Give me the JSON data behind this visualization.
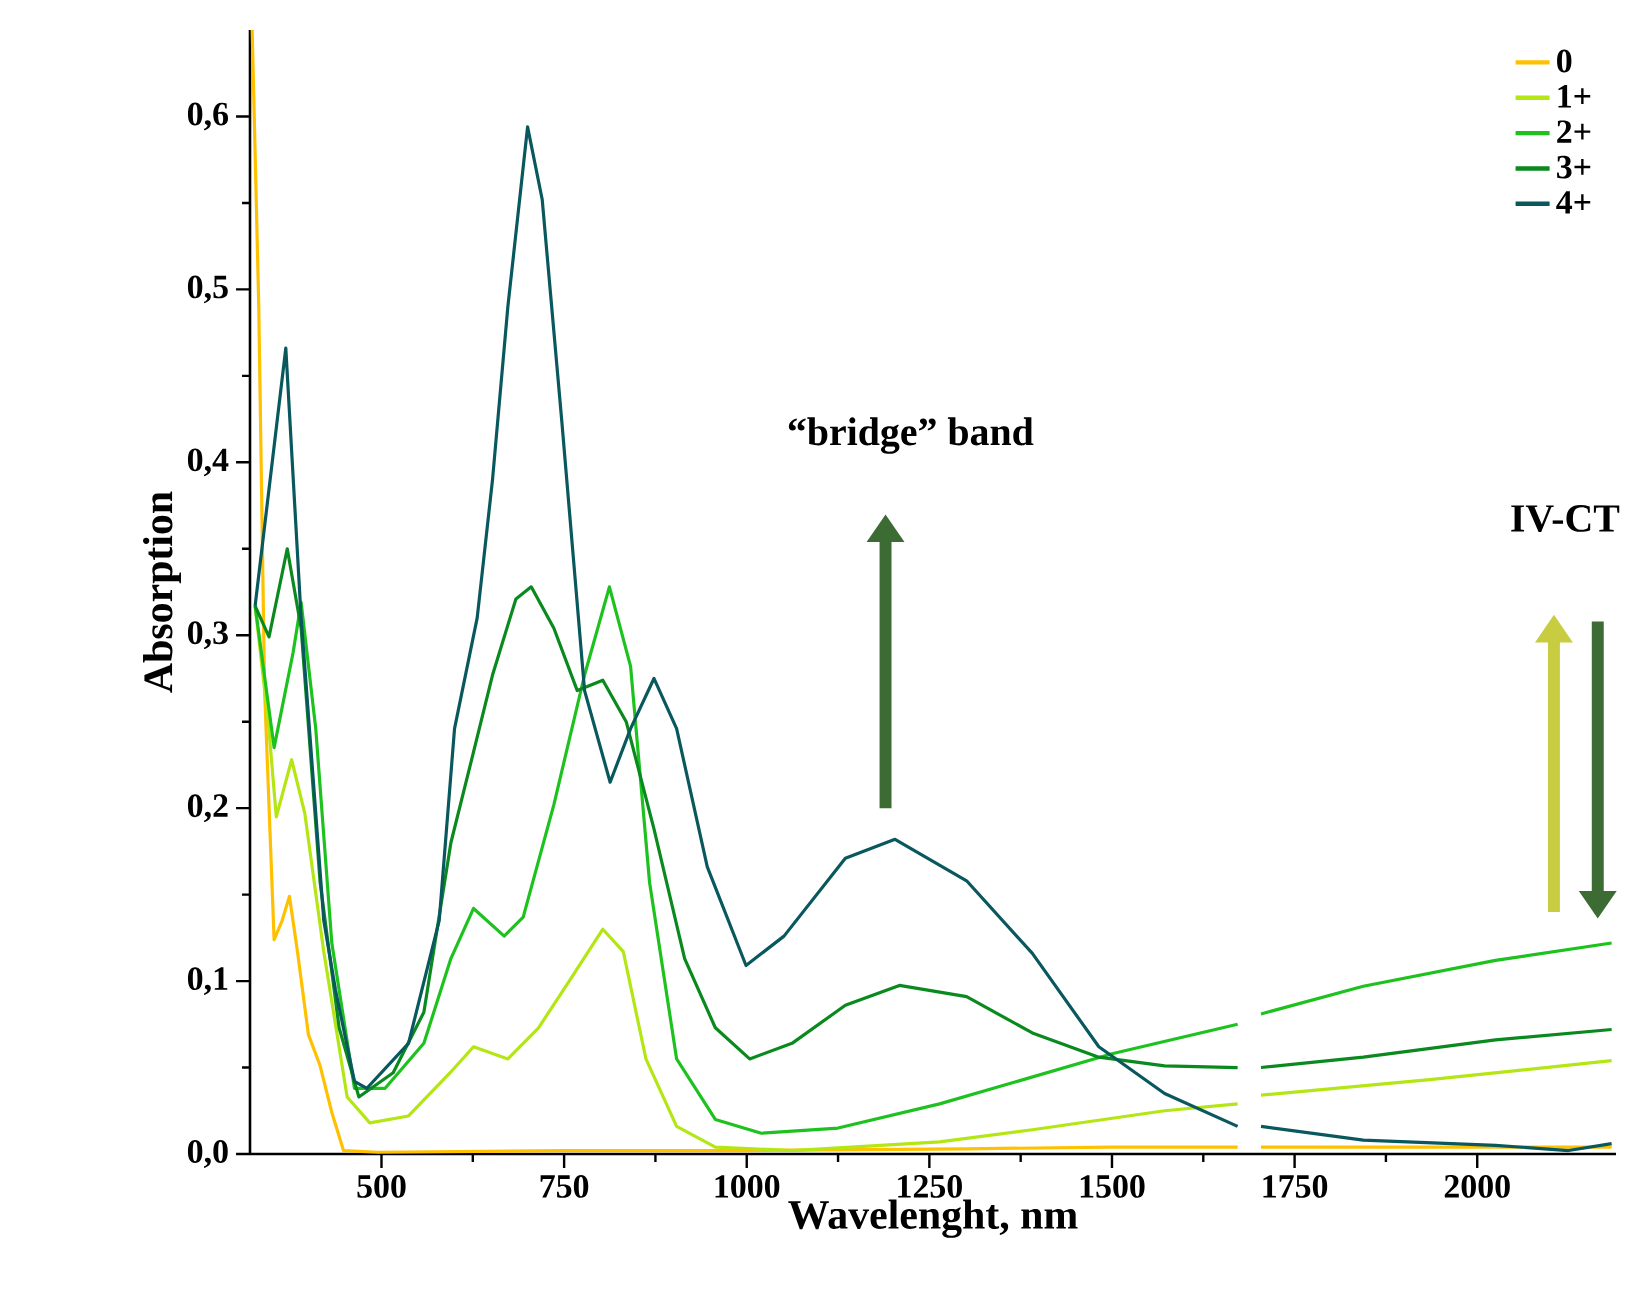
{
  "chart_data": {
    "type": "line",
    "xlabel": "Wavelenght, nm",
    "ylabel": "Absorption",
    "xlim": [
      320,
      2190
    ],
    "ylim": [
      0,
      0.65
    ],
    "xticks": [
      500,
      750,
      1000,
      1250,
      1500,
      1750,
      2000
    ],
    "yticks": [
      {
        "value": 0,
        "label": "0,0"
      },
      {
        "value": 0.1,
        "label": "0,1"
      },
      {
        "value": 0.2,
        "label": "0,2"
      },
      {
        "value": 0.3,
        "label": "0,3"
      },
      {
        "value": 0.4,
        "label": "0,4"
      },
      {
        "value": 0.5,
        "label": "0,5"
      },
      {
        "value": 0.6,
        "label": "0,6"
      }
    ],
    "legend": "top right",
    "marker": "none",
    "line_style": "solid",
    "annotations": [
      "“bridge” band",
      "IV-CT"
    ],
    "series": [
      {
        "name": "0",
        "color": "#ffc000",
        "x": [
          323,
          332,
          340,
          353,
          364,
          374,
          385,
          400,
          416,
          432,
          448,
          495,
          750,
          1000,
          1300,
          1500,
          1672,
          1688,
          1704,
          1750,
          2000,
          2184
        ],
        "values": [
          0.65,
          0.49,
          0.268,
          0.124,
          0.135,
          0.149,
          0.117,
          0.069,
          0.051,
          0.024,
          0.002,
          0.001,
          0.002,
          0.002,
          0.003,
          0.004,
          0.004,
          null,
          0.004,
          0.004,
          0.004,
          0.004
        ]
      },
      {
        "name": "1+",
        "color": "#b4e614",
        "x": [
          327,
          345,
          356,
          377,
          395,
          421,
          453,
          484,
          537,
          594,
          626,
          673,
          715,
          757,
          803,
          831,
          862,
          904,
          957,
          1062,
          1264,
          1391,
          1572,
          1672,
          1688,
          1704,
          1935,
          2184
        ],
        "values": [
          0.317,
          0.25,
          0.195,
          0.228,
          0.197,
          0.117,
          0.033,
          0.018,
          0.022,
          0.047,
          0.062,
          0.055,
          0.073,
          0.1,
          0.13,
          0.117,
          0.055,
          0.016,
          0.004,
          0.002,
          0.007,
          0.014,
          0.025,
          0.029,
          null,
          0.034,
          0.043,
          0.054
        ]
      },
      {
        "name": "2+",
        "color": "#1ec21e",
        "x": [
          327,
          353,
          379,
          390,
          410,
          432,
          463,
          505,
          558,
          595,
          626,
          668,
          694,
          736,
          778,
          812,
          841,
          867,
          904,
          957,
          1020,
          1125,
          1264,
          1346,
          1500,
          1672,
          1688,
          1704,
          1844,
          2025,
          2184
        ],
        "values": [
          0.317,
          0.235,
          0.29,
          0.319,
          0.246,
          0.122,
          0.038,
          0.038,
          0.064,
          0.113,
          0.142,
          0.126,
          0.137,
          0.202,
          0.277,
          0.328,
          0.282,
          0.157,
          0.055,
          0.02,
          0.012,
          0.015,
          0.029,
          0.039,
          0.058,
          0.075,
          null,
          0.081,
          0.097,
          0.112,
          0.122
        ]
      },
      {
        "name": "3+",
        "color": "#0a8a1e",
        "x": [
          327,
          346,
          371,
          390,
          416,
          442,
          469,
          516,
          558,
          595,
          621,
          652,
          684,
          705,
          736,
          768,
          803,
          835,
          873,
          915,
          957,
          1004,
          1062,
          1135,
          1209,
          1301,
          1391,
          1482,
          1572,
          1672,
          1688,
          1704,
          1844,
          2025,
          2184
        ],
        "values": [
          0.317,
          0.299,
          0.35,
          0.304,
          0.157,
          0.073,
          0.033,
          0.047,
          0.082,
          0.18,
          0.224,
          0.277,
          0.321,
          0.328,
          0.304,
          0.268,
          0.274,
          0.25,
          0.188,
          0.113,
          0.073,
          0.055,
          0.064,
          0.086,
          0.0975,
          0.091,
          0.07,
          0.056,
          0.051,
          0.05,
          null,
          0.05,
          0.056,
          0.066,
          0.072
        ]
      },
      {
        "name": "4+",
        "color": "#08585e",
        "x": [
          327,
          369,
          390,
          421,
          437,
          463,
          480,
          537,
          579,
          600,
          631,
          652,
          673,
          700,
          720,
          747,
          778,
          813,
          841,
          873,
          904,
          946,
          999,
          1051,
          1135,
          1203,
          1301,
          1391,
          1482,
          1572,
          1672,
          1688,
          1704,
          1844,
          2025,
          2125,
          2184
        ],
        "values": [
          0.317,
          0.466,
          0.31,
          0.135,
          0.095,
          0.042,
          0.038,
          0.064,
          0.135,
          0.246,
          0.31,
          0.39,
          0.49,
          0.594,
          0.552,
          0.423,
          0.268,
          0.215,
          0.246,
          0.275,
          0.246,
          0.166,
          0.109,
          0.126,
          0.171,
          0.182,
          0.158,
          0.116,
          0.062,
          0.035,
          0.016,
          null,
          0.016,
          0.008,
          0.005,
          0.002,
          0.006
        ]
      }
    ]
  }
}
